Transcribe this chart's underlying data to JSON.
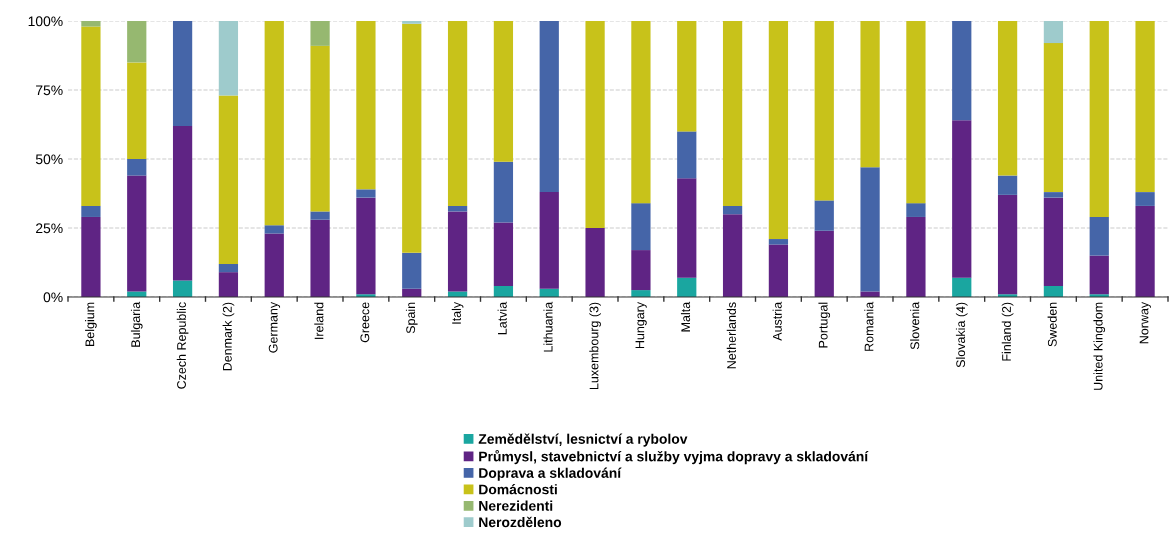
{
  "chart_data": {
    "type": "bar",
    "stacked": true,
    "legend": "bottom",
    "grid": "y",
    "categories": [
      "Belgium",
      "Bulgaria",
      "Czech Republic",
      "Denmark (2)",
      "Germany",
      "Ireland",
      "Greece",
      "Spain",
      "Italy",
      "Latvia",
      "Lithuania",
      "Luxembourg (3)",
      "Hungary",
      "Malta",
      "Netherlands",
      "Austria",
      "Portugal",
      "Romania",
      "Slovenia",
      "Slovakia (4)",
      "Finland (2)",
      "Sweden",
      "United Kingdom",
      "Norway"
    ],
    "ylim": [
      0,
      100
    ],
    "yticks": [
      {
        "value": 0,
        "label": "0%"
      },
      {
        "value": 25,
        "label": "25%"
      },
      {
        "value": 50,
        "label": "50%"
      },
      {
        "value": 75,
        "label": "75%"
      },
      {
        "value": 100,
        "label": "100%"
      }
    ],
    "series": [
      {
        "name": "Zemědělství, lesnictví a rybolov",
        "color": "#1aa6a0",
        "values": [
          0,
          2,
          6,
          0,
          0,
          0,
          1,
          0,
          2,
          4,
          3,
          0,
          2.5,
          7,
          0,
          0,
          0,
          0,
          0,
          7,
          1,
          4,
          1,
          0
        ]
      },
      {
        "name": "Průmysl, stavebnictví a služby vyjma dopravy a skladování",
        "color": "#5f2484",
        "values": [
          29,
          42,
          56,
          9,
          23,
          28,
          35,
          3,
          29,
          23,
          35,
          25,
          14.5,
          36,
          30,
          19,
          24,
          2,
          29,
          57,
          36,
          32,
          14,
          33
        ]
      },
      {
        "name": "Doprava a skladování",
        "color": "#4565a8",
        "values": [
          4,
          6,
          38,
          3,
          3,
          3,
          3,
          13,
          2,
          22,
          62,
          0,
          17,
          17,
          3,
          2,
          11,
          45,
          5,
          36,
          7,
          2,
          14,
          5
        ]
      },
      {
        "name": "Domácnosti",
        "color": "#c8c21a",
        "values": [
          65,
          35,
          0,
          61,
          74,
          60,
          61,
          83,
          67,
          51,
          0,
          75,
          66,
          40,
          67,
          79,
          65,
          53,
          66,
          0,
          56,
          54,
          71,
          62
        ]
      },
      {
        "name": "Nerezidenti",
        "color": "#96b870",
        "values": [
          2,
          15,
          0,
          0,
          0,
          9,
          0,
          0,
          0,
          0,
          0,
          0,
          0,
          0,
          0,
          0,
          0,
          0,
          0,
          0,
          0,
          0,
          0,
          0
        ]
      },
      {
        "name": "Nerozděleno",
        "color": "#9ecbcc",
        "values": [
          0,
          0,
          0,
          27,
          0,
          0,
          0,
          1,
          0,
          0,
          0,
          0,
          0,
          0,
          0,
          0,
          0,
          0,
          0,
          0,
          0,
          8,
          0,
          0
        ]
      }
    ]
  }
}
